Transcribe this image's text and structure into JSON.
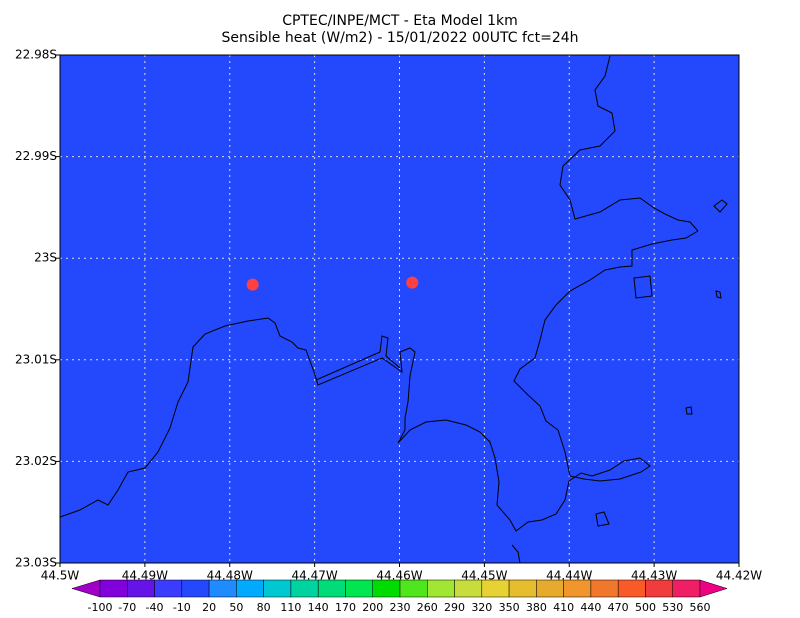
{
  "title": [
    "CPTEC/INPE/MCT -  Eta Model 1km",
    "Sensible heat (W/m2) - 15/01/2022 00UTC fct=24h"
  ],
  "field_color": "#2448fc",
  "lon_lim": [
    -44.5,
    -44.42
  ],
  "lat_lim": [
    -22.98,
    -23.03
  ],
  "lon_ticks": [
    {
      "value": -44.5,
      "label": "44.5W"
    },
    {
      "value": -44.49,
      "label": "44.49W"
    },
    {
      "value": -44.48,
      "label": "44.48W"
    },
    {
      "value": -44.47,
      "label": "44.47W"
    },
    {
      "value": -44.46,
      "label": "44.46W"
    },
    {
      "value": -44.45,
      "label": "44.45W"
    },
    {
      "value": -44.44,
      "label": "44.44W"
    },
    {
      "value": -44.43,
      "label": "44.43W"
    },
    {
      "value": -44.42,
      "label": "44.42W"
    }
  ],
  "lat_ticks": [
    {
      "value": -22.98,
      "label": "22.98S"
    },
    {
      "value": -22.99,
      "label": "22.99S"
    },
    {
      "value": -23,
      "label": "23S"
    },
    {
      "value": -23.01,
      "label": "23.01S"
    },
    {
      "value": -23.02,
      "label": "23.02S"
    },
    {
      "value": -23.03,
      "label": "23.03S"
    }
  ],
  "markers": {
    "color": "#ff4040",
    "points": [
      {
        "lon": -44.4773,
        "lat": -23.0026
      },
      {
        "lon": -44.4585,
        "lat": -23.0024
      }
    ]
  },
  "colorbar": {
    "labels": [
      -100,
      -70,
      -40,
      -10,
      20,
      50,
      80,
      110,
      140,
      170,
      200,
      230,
      260,
      290,
      320,
      350,
      380,
      410,
      440,
      470,
      500,
      530,
      560
    ],
    "colors": [
      "#a000c8",
      "#8200dc",
      "#6414e6",
      "#3c3cff",
      "#2448fc",
      "#1e8cff",
      "#00aaff",
      "#00c8d2",
      "#00d2a0",
      "#00dc78",
      "#00e650",
      "#00dc00",
      "#50e61e",
      "#a0e632",
      "#c8dc3c",
      "#e6d232",
      "#e6be2d",
      "#e6aa2d",
      "#f0962d",
      "#f0782d",
      "#fa5a28",
      "#f03c3c",
      "#f01e64",
      "#f00082"
    ]
  }
}
